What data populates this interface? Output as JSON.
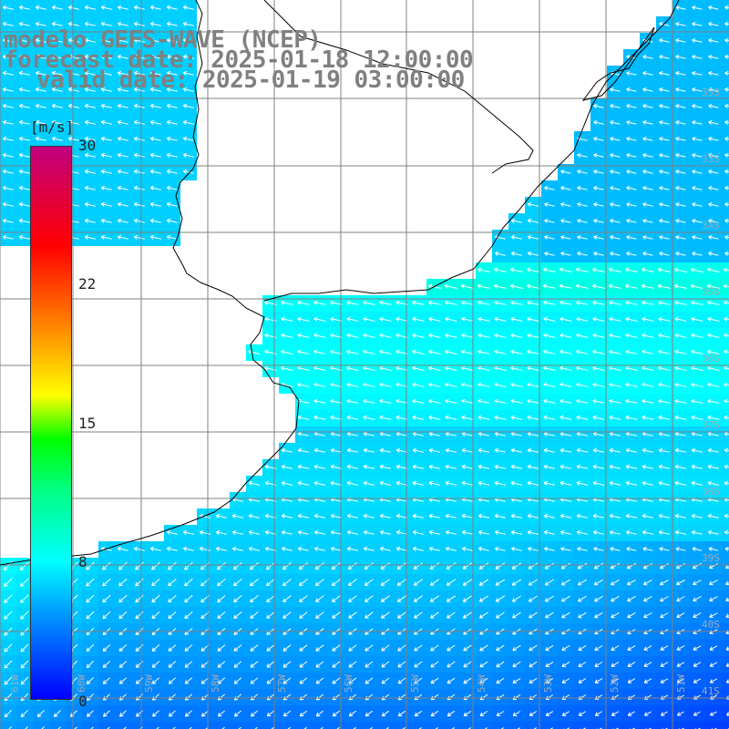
{
  "title": {
    "line1": "modelo GEFS-WAVE (NCEP)",
    "line2": "forecast date: 2025-01-18 12:00:00",
    "line3": "valid date: 2025-01-19 03:00:00"
  },
  "colorbar": {
    "unit": "[m/s]",
    "ticks": [
      "30",
      "22",
      "15",
      "8",
      "0"
    ],
    "min": 0,
    "max": 30
  },
  "axes": {
    "lat_labels": [
      "35S",
      "33S",
      "34S",
      "35S",
      "36S",
      "37S",
      "38S",
      "39S",
      "40S",
      "41S"
    ],
    "lon_labels": [
      "61W",
      "60W",
      "59W",
      "58W",
      "57W",
      "56W",
      "55W",
      "54W",
      "53W",
      "52W",
      "51W"
    ]
  },
  "colors": {
    "land": "#ffffff",
    "coast": "#000000",
    "grid": "#808080",
    "arrows": "#ffffff",
    "title": "#808080"
  }
}
